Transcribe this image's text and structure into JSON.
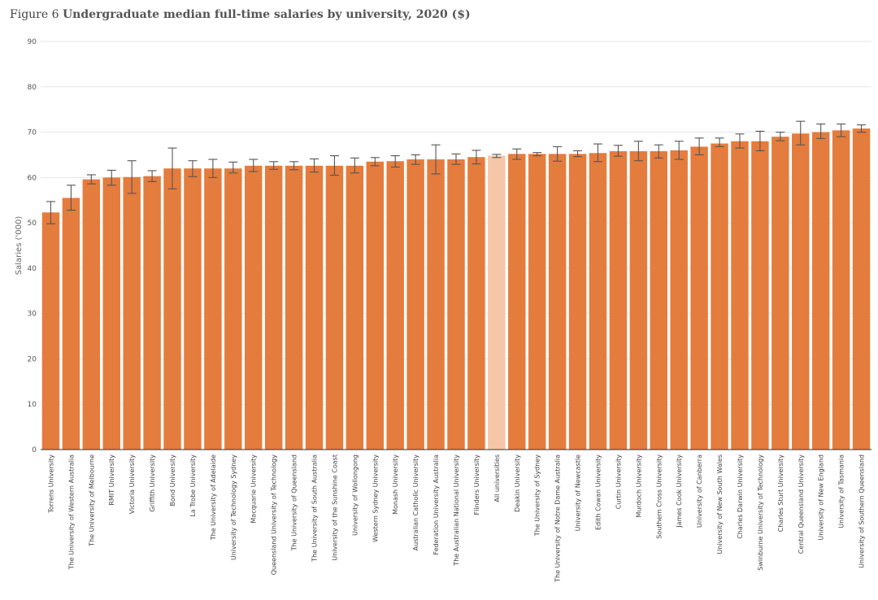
{
  "title": {
    "prefix": "Figure 6",
    "text": "Undergraduate median full-time salaries by university, 2020 ($)"
  },
  "colors": {
    "bar": "#e47c3e",
    "highlight": "#f6c6a8",
    "error_bar": "#555555",
    "grid": "#e6e6e6",
    "axis": "#333333"
  },
  "chart_data": {
    "type": "bar",
    "ylabel": "Salaries ('000)",
    "xlabel": "",
    "ylim": [
      0,
      90
    ],
    "yticks": [
      0,
      10,
      20,
      30,
      40,
      50,
      60,
      70,
      80,
      90
    ],
    "grid": true,
    "highlight_category": "All universities",
    "categories": [
      "Torrens University",
      "The University of Western Australia",
      "The University of Melbourne",
      "RMIT University",
      "Victoria University",
      "Griffith University",
      "Bond University",
      "La Trobe University",
      "The University of Adelaide",
      "University of Technology Sydney",
      "Macquarie University",
      "Queensland University of Technology",
      "The University of Queensland",
      "The University of South Australia",
      "University of the Sunshine Coast",
      "University of Wollongong",
      "Western Sydney University",
      "Monash University",
      "Australian Catholic University",
      "Federation University Australia",
      "The Australian National University",
      "Flinders University",
      "All universities",
      "Deakin University",
      "The University of Sydney",
      "The University of Notre Dame Australia",
      "University of Newcastle",
      "Edith Cowan University",
      "Curtin University",
      "Murdoch University",
      "Southern Cross University",
      "James Cook University",
      "University of Canberra",
      "University of New South Wales",
      "Charles Darwin University",
      "Swinburne University of Technology",
      "Charles Sturt University",
      "Central Queensland University",
      "University of New England",
      "University of Tasmania",
      "University of Southern Queensland"
    ],
    "values": [
      52.3,
      55.5,
      59.6,
      60.0,
      60.1,
      60.3,
      62.0,
      62.0,
      62.0,
      62.0,
      62.6,
      62.6,
      62.6,
      62.6,
      62.6,
      62.6,
      63.5,
      63.6,
      64.0,
      64.0,
      64.0,
      64.5,
      64.8,
      65.2,
      65.2,
      65.2,
      65.2,
      65.4,
      65.8,
      65.8,
      65.8,
      66.0,
      66.8,
      67.5,
      68.0,
      68.0,
      69.0,
      69.7,
      70.0,
      70.4,
      70.8
    ],
    "error_low": [
      49.8,
      52.8,
      58.6,
      58.3,
      56.5,
      59.1,
      57.5,
      60.2,
      60.0,
      61.0,
      61.3,
      61.8,
      61.7,
      61.2,
      60.5,
      61.0,
      62.6,
      62.3,
      62.9,
      60.8,
      62.9,
      63.0,
      64.4,
      64.0,
      64.8,
      63.6,
      64.6,
      63.5,
      64.7,
      63.7,
      64.3,
      64.0,
      65.0,
      66.8,
      66.5,
      65.9,
      68.1,
      67.2,
      68.6,
      69.0,
      70.0
    ],
    "error_high": [
      54.7,
      58.3,
      60.6,
      61.6,
      63.7,
      61.5,
      66.5,
      63.7,
      64.0,
      63.4,
      64.0,
      63.5,
      63.5,
      64.1,
      64.8,
      64.3,
      64.4,
      64.8,
      65.0,
      67.2,
      65.2,
      66.0,
      65.1,
      66.3,
      65.5,
      66.8,
      65.9,
      67.4,
      67.1,
      68.0,
      67.2,
      68.0,
      68.7,
      68.7,
      69.6,
      70.2,
      70.0,
      72.4,
      71.8,
      71.8,
      71.6
    ]
  }
}
